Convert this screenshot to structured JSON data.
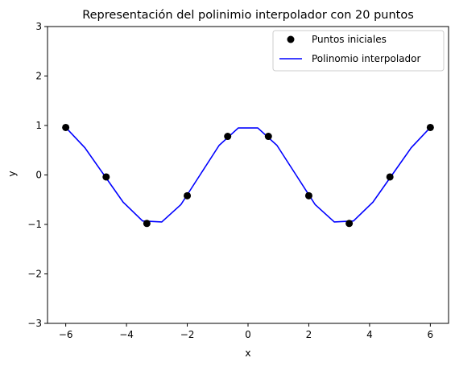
{
  "chart_data": {
    "type": "line",
    "title": "Representación del polinimio interpolador con 20 puntos",
    "xlabel": "x",
    "ylabel": "y",
    "xlim": [
      -6.6,
      6.6
    ],
    "ylim": [
      -3,
      3
    ],
    "x_ticks": [
      -6,
      -4,
      -2,
      0,
      2,
      4,
      6
    ],
    "y_ticks": [
      -3,
      -2,
      -1,
      0,
      1,
      2,
      3
    ],
    "x_tick_labels": [
      "−6",
      "−4",
      "−2",
      "0",
      "2",
      "4",
      "6"
    ],
    "y_tick_labels": [
      "−3",
      "−2",
      "−1",
      "0",
      "1",
      "2",
      "3"
    ],
    "grid": false,
    "legend_position": "top-right",
    "series": [
      {
        "name": "Puntos iniciales",
        "kind": "scatter",
        "color": "#000000",
        "x": [
          -6.0,
          -4.67,
          -3.33,
          -2.0,
          -0.67,
          0.67,
          2.0,
          3.33,
          4.67,
          6.0
        ],
        "y": [
          0.96,
          -0.04,
          -0.98,
          -0.42,
          0.78,
          0.78,
          -0.42,
          -0.98,
          -0.04,
          0.96
        ]
      },
      {
        "name": "Polinomio interpolador",
        "kind": "line",
        "color": "#0000ff",
        "x": [
          -6.0,
          -5.37,
          -4.74,
          -4.11,
          -3.47,
          -2.84,
          -2.21,
          -1.58,
          -0.95,
          -0.32,
          0.32,
          0.95,
          1.58,
          2.21,
          2.84,
          3.47,
          4.11,
          4.74,
          5.37,
          6.0
        ],
        "y": [
          0.96,
          0.55,
          0.0,
          -0.55,
          -0.93,
          -0.95,
          -0.6,
          0.0,
          0.6,
          0.95,
          0.95,
          0.6,
          0.0,
          -0.6,
          -0.95,
          -0.93,
          -0.55,
          0.0,
          0.55,
          0.96
        ]
      }
    ]
  }
}
